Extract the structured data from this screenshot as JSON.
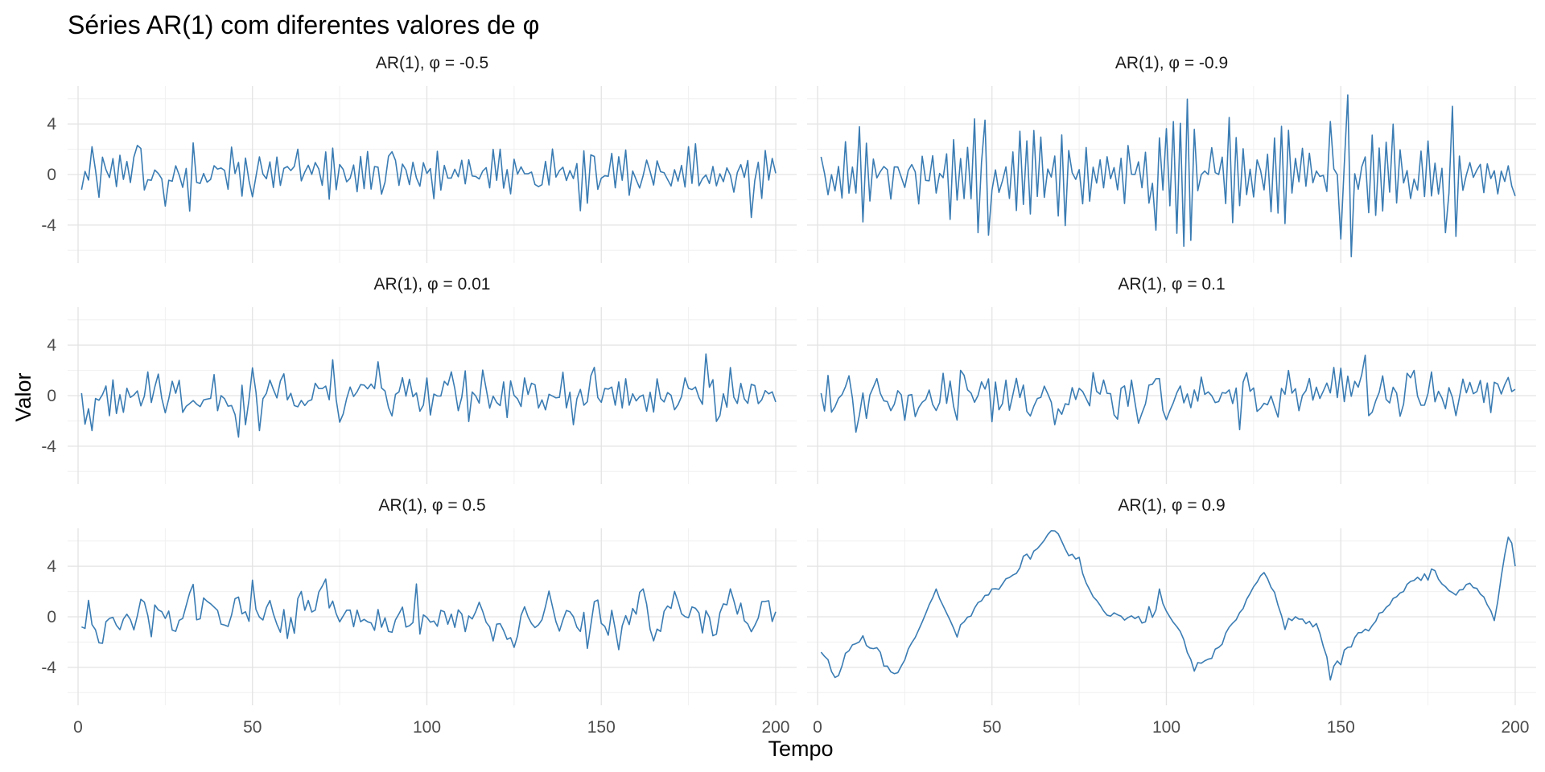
{
  "chart_data": {
    "type": "line",
    "title": "Séries AR(1) com diferentes valores de φ",
    "xlabel": "Tempo",
    "ylabel": "Valor",
    "xlim": [
      -3,
      206
    ],
    "ylim": [
      -7,
      7
    ],
    "x_ticks": [
      0,
      50,
      100,
      150,
      200
    ],
    "y_ticks": [
      -4,
      0,
      4
    ],
    "x_tick_labels": [
      "0",
      "50",
      "100",
      "150",
      "200"
    ],
    "y_tick_labels": [
      "-4",
      "0",
      "4"
    ],
    "grid": true,
    "line_color": "#3a7cb3",
    "n_points": 200,
    "panels": [
      {
        "label": "AR(1), φ = -0.5",
        "phi": -0.5,
        "anchors": [
          [
            1,
            -1.2
          ],
          [
            4,
            2.2
          ],
          [
            6,
            -1.8
          ],
          [
            17,
            2.3
          ],
          [
            25,
            -2.5
          ],
          [
            32,
            -2.9
          ],
          [
            33,
            2.5
          ],
          [
            52,
            1.4
          ],
          [
            63,
            2.0
          ],
          [
            90,
            1.8
          ],
          [
            121,
            2.0
          ],
          [
            175,
            2.2
          ],
          [
            193,
            -3.4
          ],
          [
            197,
            1.9
          ],
          [
            200,
            0.1
          ]
        ]
      },
      {
        "label": "AR(1), φ = -0.9",
        "phi": -0.9,
        "anchors": [
          [
            1,
            1.4
          ],
          [
            3,
            -1.6
          ],
          [
            8,
            2.6
          ],
          [
            45,
            4.4
          ],
          [
            46,
            -4.6
          ],
          [
            48,
            4.3
          ],
          [
            49,
            -4.8
          ],
          [
            97,
            -4.4
          ],
          [
            147,
            4.2
          ],
          [
            150,
            -5.1
          ],
          [
            152,
            6.3
          ],
          [
            153,
            -6.5
          ],
          [
            182,
            5.4
          ],
          [
            180,
            -4.6
          ],
          [
            183,
            -4.9
          ],
          [
            200,
            -1.7
          ]
        ]
      },
      {
        "label": "AR(1), φ = 0.01",
        "phi": 0.01,
        "anchors": [
          [
            1,
            0.2
          ],
          [
            50,
            2.2
          ],
          [
            48,
            -2.3
          ],
          [
            75,
            -2.1
          ],
          [
            100,
            1.4
          ],
          [
            142,
            -2.3
          ],
          [
            180,
            3.3
          ],
          [
            200,
            -0.5
          ]
        ]
      },
      {
        "label": "AR(1), φ = 0.1",
        "phi": 0.1,
        "anchors": [
          [
            1,
            0.2
          ],
          [
            3,
            1.6
          ],
          [
            14,
            -1.8
          ],
          [
            41,
            2.0
          ],
          [
            68,
            -2.3
          ],
          [
            157,
            3.2
          ],
          [
            171,
            2.0
          ],
          [
            200,
            0.5
          ]
        ]
      },
      {
        "label": "AR(1), φ = 0.5",
        "phi": 0.5,
        "anchors": [
          [
            1,
            -0.8
          ],
          [
            3,
            1.3
          ],
          [
            7,
            -2.1
          ],
          [
            50,
            2.9
          ],
          [
            62,
            -1.3
          ],
          [
            97,
            2.6
          ],
          [
            146,
            -2.5
          ],
          [
            182,
            -1.5
          ],
          [
            200,
            0.4
          ]
        ]
      },
      {
        "label": "AR(1), φ = 0.9",
        "phi": 0.9,
        "anchors": [
          [
            1,
            -2.8
          ],
          [
            5,
            -4.8
          ],
          [
            13,
            -1.5
          ],
          [
            22,
            -4.5
          ],
          [
            34,
            2.2
          ],
          [
            40,
            -1.6
          ],
          [
            50,
            2.2
          ],
          [
            62,
            5.2
          ],
          [
            68,
            6.8
          ],
          [
            75,
            4.7
          ],
          [
            80,
            1.3
          ],
          [
            95,
            0.8
          ],
          [
            98,
            2.2
          ],
          [
            108,
            -4.3
          ],
          [
            128,
            3.5
          ],
          [
            134,
            -1.0
          ],
          [
            142,
            -0.8
          ],
          [
            147,
            -5.0
          ],
          [
            150,
            -3.8
          ],
          [
            168,
            2.0
          ],
          [
            175,
            2.9
          ],
          [
            190,
            1.8
          ],
          [
            194,
            -0.3
          ],
          [
            198,
            6.3
          ],
          [
            200,
            4.0
          ]
        ]
      }
    ]
  }
}
